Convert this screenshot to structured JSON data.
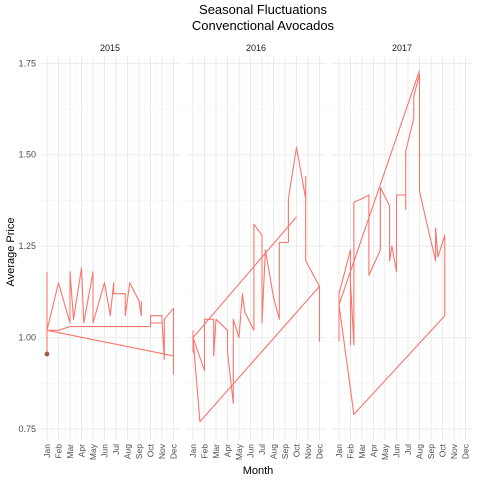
{
  "chart_data": {
    "type": "line",
    "title": "Seasonal Fluctuations\nConvenctional Avocados",
    "title_lines": [
      "Seasonal Fluctuations",
      "Convenctional Avocados"
    ],
    "xlabel": "Month",
    "ylabel": "Average Price",
    "ylim": [
      0.72,
      1.77
    ],
    "yticks": [
      0.75,
      1.0,
      1.25,
      1.5,
      1.75
    ],
    "ytick_labels": [
      "0.75",
      "1.00",
      "1.25",
      "1.50",
      "1.75"
    ],
    "month_labels": [
      "Jan",
      "Feb",
      "Mar",
      "Apr",
      "May",
      "Jun",
      "Jul",
      "Aug",
      "Sep",
      "Oct",
      "Nov",
      "Dec"
    ],
    "grid": true,
    "line_color": "#F8766D",
    "panels": [
      {
        "label": "2015",
        "points": [
          [
            1,
            1.18
          ],
          [
            1,
            0.95
          ],
          [
            1,
            1.02
          ],
          [
            2,
            1.02
          ],
          [
            3,
            1.03
          ],
          [
            4,
            1.03
          ],
          [
            5,
            1.03
          ],
          [
            6,
            1.03
          ],
          [
            7,
            1.03
          ],
          [
            8,
            1.03
          ],
          [
            9,
            1.03
          ],
          [
            10,
            1.03
          ],
          [
            10,
            1.06
          ],
          [
            11,
            1.06
          ],
          [
            11,
            1.04
          ],
          [
            10,
            1.04
          ],
          [
            10,
            1.06
          ],
          [
            11,
            1.06
          ],
          [
            11,
            1.05
          ],
          [
            11.2,
            0.94
          ],
          [
            11.2,
            1.05
          ],
          [
            12,
            1.08
          ],
          [
            12,
            0.9
          ],
          [
            12,
            0.95
          ],
          [
            1,
            1.02
          ],
          [
            2,
            1.15
          ],
          [
            3,
            1.04
          ],
          [
            3,
            1.18
          ],
          [
            3.3,
            1.05
          ],
          [
            4,
            1.19
          ],
          [
            4.2,
            1.04
          ],
          [
            5,
            1.18
          ],
          [
            5,
            1.04
          ],
          [
            6,
            1.15
          ],
          [
            6.5,
            1.06
          ],
          [
            6.8,
            1.15
          ],
          [
            6.8,
            1.12
          ],
          [
            7.8,
            1.12
          ],
          [
            7.8,
            1.06
          ],
          [
            8.2,
            1.15
          ],
          [
            9,
            1.1
          ],
          [
            9.2,
            1.06
          ],
          [
            9.2,
            1.1
          ]
        ],
        "highlight_point": [
          1,
          0.955
        ]
      },
      {
        "label": "2016",
        "points": [
          [
            1,
            1.02
          ],
          [
            1,
            0.96
          ],
          [
            1,
            1.0
          ],
          [
            2,
            0.91
          ],
          [
            2,
            1.05
          ],
          [
            2.8,
            1.05
          ],
          [
            2.8,
            0.95
          ],
          [
            3,
            1.05
          ],
          [
            4,
            1.02
          ],
          [
            4,
            0.96
          ],
          [
            4.5,
            0.82
          ],
          [
            4.5,
            1.05
          ],
          [
            5,
            1.0
          ],
          [
            5.3,
            1.12
          ],
          [
            5.5,
            1.07
          ],
          [
            6.3,
            1.02
          ],
          [
            6.3,
            1.31
          ],
          [
            7,
            1.28
          ],
          [
            7,
            1.04
          ],
          [
            7.3,
            1.24
          ],
          [
            8,
            1.11
          ],
          [
            8.5,
            1.05
          ],
          [
            8.5,
            1.26
          ],
          [
            9.3,
            1.26
          ],
          [
            9.3,
            1.38
          ],
          [
            10,
            1.52
          ],
          [
            10.8,
            1.38
          ],
          [
            10.8,
            1.44
          ],
          [
            10.8,
            1.21
          ],
          [
            12,
            1.14
          ],
          [
            12,
            0.99
          ],
          [
            12,
            1.14
          ],
          [
            1.6,
            0.77
          ],
          [
            1,
            1.0
          ],
          [
            10,
            1.33
          ]
        ],
        "highlight_point": null
      },
      {
        "label": "2017",
        "points": [
          [
            1,
            0.99
          ],
          [
            1,
            1.12
          ],
          [
            2,
            1.24
          ],
          [
            2,
            0.98
          ],
          [
            2,
            1.15
          ],
          [
            2.3,
            0.98
          ],
          [
            2.3,
            1.37
          ],
          [
            3,
            1.38
          ],
          [
            3.6,
            1.39
          ],
          [
            3.6,
            1.17
          ],
          [
            4.6,
            1.24
          ],
          [
            4.6,
            1.41
          ],
          [
            5.4,
            1.36
          ],
          [
            5.4,
            1.21
          ],
          [
            5.6,
            1.25
          ],
          [
            6,
            1.18
          ],
          [
            6,
            1.39
          ],
          [
            6.8,
            1.39
          ],
          [
            6.8,
            1.35
          ],
          [
            6.8,
            1.51
          ],
          [
            7.5,
            1.6
          ],
          [
            7.5,
            1.66
          ],
          [
            8,
            1.72
          ],
          [
            8,
            1.4
          ],
          [
            8.8,
            1.29
          ],
          [
            9.4,
            1.21
          ],
          [
            9.4,
            1.3
          ],
          [
            9.6,
            1.22
          ],
          [
            10.2,
            1.28
          ],
          [
            10.2,
            1.18
          ],
          [
            10.2,
            1.06
          ],
          [
            2.3,
            0.79
          ],
          [
            1,
            1.09
          ],
          [
            8,
            1.73
          ]
        ],
        "highlight_point": null
      }
    ]
  }
}
